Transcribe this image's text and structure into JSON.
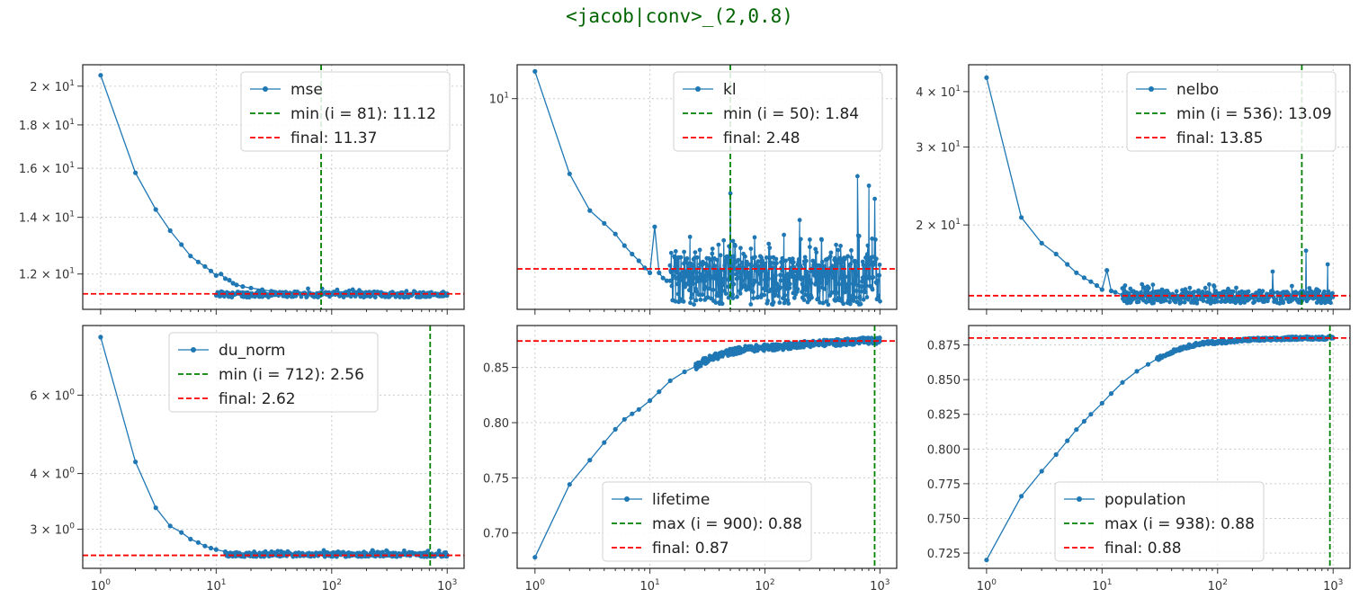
{
  "title": "<jacob|conv>_(2,0.8)",
  "colors": {
    "title": "#006400",
    "series": "#1f77b4",
    "min_line": "#008000",
    "final_line": "#ff0000",
    "grid": "#cccccc"
  },
  "chart_data": [
    {
      "type": "line",
      "series_name": "mse",
      "yscale": "log",
      "xscale": "log",
      "xlim": [
        0.7,
        1400
      ],
      "ylim": [
        10.9,
        21.2
      ],
      "x_ticks": [
        1,
        10,
        100,
        1000
      ],
      "x_tick_labels": [
        "",
        "",
        "",
        ""
      ],
      "y_ticks": [
        12,
        14,
        16,
        18,
        20
      ],
      "y_tick_labels": [
        "1.2 × 10^1",
        "1.4 × 10^1",
        "1.6 × 10^1",
        "1.8 × 10^1",
        "2 × 10^1"
      ],
      "y_major_label_values": [
        12,
        14,
        16,
        18,
        20
      ],
      "legend": [
        "mse",
        "min (i = 81): 11.12",
        "final: 11.37"
      ],
      "legend_loc": "upper right",
      "vline_x": 81,
      "hline_y": 11.37,
      "x": [
        1,
        2,
        3,
        4,
        5,
        6,
        7,
        8,
        9,
        10,
        11,
        12,
        13,
        14,
        15,
        17,
        20,
        25,
        30,
        40,
        50,
        70,
        100,
        200,
        400,
        700,
        1000
      ],
      "y": [
        20.6,
        15.8,
        14.3,
        13.5,
        13.0,
        12.6,
        12.4,
        12.25,
        12.1,
        11.95,
        12.0,
        11.85,
        11.8,
        11.7,
        11.65,
        11.6,
        11.55,
        11.5,
        11.45,
        11.42,
        11.4,
        11.35,
        11.38,
        11.4,
        11.38,
        11.4,
        11.37
      ],
      "noise": {
        "from": 10,
        "to": 1000,
        "center": 11.35,
        "amp": 0.09,
        "count": 280
      }
    },
    {
      "type": "line",
      "series_name": "kl",
      "yscale": "log",
      "xscale": "log",
      "xlim": [
        0.7,
        1400
      ],
      "ylim": [
        1.78,
        13.2
      ],
      "x_ticks": [
        1,
        10,
        100,
        1000
      ],
      "x_tick_labels": [
        "",
        "",
        "",
        ""
      ],
      "y_ticks": [
        10
      ],
      "y_tick_labels": [
        "10^1"
      ],
      "legend": [
        "kl",
        "min (i = 50): 1.84",
        "final: 2.48"
      ],
      "legend_loc": "upper right",
      "vline_x": 50,
      "hline_y": 2.48,
      "x": [
        1,
        2,
        3,
        4,
        5,
        6,
        7,
        8,
        9,
        10,
        11,
        12,
        13,
        14,
        15,
        17,
        20,
        25,
        30,
        40,
        50
      ],
      "y": [
        12.5,
        5.4,
        4.0,
        3.6,
        3.3,
        3.0,
        2.8,
        2.65,
        2.5,
        2.4,
        3.5,
        2.4,
        2.3,
        2.25,
        2.25,
        2.3,
        2.2,
        2.3,
        2.25,
        2.3,
        2.3
      ],
      "noise": {
        "from": 15,
        "to": 1000,
        "center": 2.3,
        "amp": 0.45,
        "count": 520,
        "spikes": [
          [
            50,
            4.6
          ],
          [
            200,
            3.7
          ],
          [
            640,
            5.3
          ],
          [
            800,
            4.9
          ],
          [
            900,
            4.4
          ]
        ]
      }
    },
    {
      "type": "line",
      "series_name": "nelbo",
      "yscale": "log",
      "xscale": "log",
      "xlim": [
        0.7,
        1400
      ],
      "ylim": [
        12.9,
        46.0
      ],
      "x_ticks": [
        1,
        10,
        100,
        1000
      ],
      "x_tick_labels": [
        "",
        "",
        "",
        ""
      ],
      "y_ticks": [
        20,
        30,
        40
      ],
      "y_tick_labels": [
        "2 × 10^1",
        "3 × 10^1",
        "4 × 10^1"
      ],
      "legend": [
        "nelbo",
        "min (i = 536): 13.09",
        "final: 13.85"
      ],
      "legend_loc": "upper right",
      "vline_x": 536,
      "hline_y": 13.85,
      "x": [
        1,
        2,
        3,
        4,
        5,
        6,
        7,
        8,
        9,
        10,
        11,
        12,
        13,
        15,
        17,
        20,
        25,
        30,
        40,
        50
      ],
      "y": [
        43.0,
        20.8,
        18.2,
        17.2,
        16.3,
        15.6,
        15.2,
        14.9,
        14.6,
        14.3,
        15.8,
        14.2,
        14.1,
        13.9,
        13.85,
        13.8,
        13.75,
        13.7,
        13.7,
        13.7
      ],
      "noise": {
        "from": 15,
        "to": 1000,
        "center": 13.75,
        "amp": 0.45,
        "count": 420,
        "spikes": [
          [
            300,
            15.7
          ],
          [
            580,
            17.5
          ],
          [
            900,
            16.3
          ]
        ]
      }
    },
    {
      "type": "line",
      "series_name": "du_norm",
      "yscale": "log",
      "xscale": "log",
      "xlim": [
        0.7,
        1400
      ],
      "ylim": [
        2.45,
        8.6
      ],
      "x_ticks": [
        1,
        10,
        100,
        1000
      ],
      "x_tick_labels": [
        "10^0",
        "10^1",
        "10^2",
        "10^3"
      ],
      "y_ticks": [
        3,
        4,
        6
      ],
      "y_tick_labels": [
        "3 × 10^0",
        "4 × 10^0",
        "6 × 10^0"
      ],
      "legend": [
        "du_norm",
        "min (i = 712): 2.56",
        "final: 2.62"
      ],
      "legend_loc": "upper center",
      "vline_x": 712,
      "hline_y": 2.62,
      "x": [
        1,
        2,
        3,
        4,
        5,
        6,
        7,
        8,
        9,
        10,
        12,
        15,
        20,
        30,
        50,
        100,
        300,
        1000
      ],
      "y": [
        8.1,
        4.25,
        3.35,
        3.05,
        2.95,
        2.85,
        2.8,
        2.75,
        2.72,
        2.7,
        2.67,
        2.66,
        2.64,
        2.63,
        2.63,
        2.62,
        2.62,
        2.62
      ],
      "noise": {
        "from": 12,
        "to": 1000,
        "center": 2.63,
        "amp": 0.03,
        "count": 300
      }
    },
    {
      "type": "line",
      "series_name": "lifetime",
      "yscale": "linear",
      "xscale": "log",
      "xlim": [
        0.7,
        1400
      ],
      "ylim": [
        0.668,
        0.888
      ],
      "x_ticks": [
        1,
        10,
        100,
        1000
      ],
      "x_tick_labels": [
        "10^0",
        "10^1",
        "10^2",
        "10^3"
      ],
      "y_ticks": [
        0.7,
        0.75,
        0.8,
        0.85
      ],
      "y_tick_labels": [
        "0.70",
        "0.75",
        "0.80",
        "0.85"
      ],
      "legend": [
        "lifetime",
        "max (i = 900): 0.88",
        "final: 0.87"
      ],
      "legend_loc": "lower center",
      "vline_x": 900,
      "hline_y": 0.874,
      "x": [
        1,
        2,
        3,
        4,
        5,
        6,
        7,
        8,
        10,
        12,
        15,
        20,
        25,
        30,
        40,
        50,
        70,
        100,
        150,
        200,
        300,
        500,
        700,
        1000
      ],
      "y": [
        0.678,
        0.744,
        0.766,
        0.782,
        0.794,
        0.803,
        0.808,
        0.812,
        0.82,
        0.828,
        0.838,
        0.846,
        0.851,
        0.856,
        0.861,
        0.864,
        0.867,
        0.868,
        0.869,
        0.871,
        0.872,
        0.873,
        0.874,
        0.874
      ],
      "noise": {
        "from": 25,
        "to": 1000,
        "center_curve": true,
        "amp": 0.003,
        "count": 350
      }
    },
    {
      "type": "line",
      "series_name": "population",
      "yscale": "linear",
      "xscale": "log",
      "xlim": [
        0.7,
        1400
      ],
      "ylim": [
        0.714,
        0.889
      ],
      "x_ticks": [
        1,
        10,
        100,
        1000
      ],
      "x_tick_labels": [
        "10^0",
        "10^1",
        "10^2",
        "10^3"
      ],
      "y_ticks": [
        0.725,
        0.75,
        0.775,
        0.8,
        0.825,
        0.85,
        0.875
      ],
      "y_tick_labels": [
        "0.725",
        "0.750",
        "0.775",
        "0.800",
        "0.825",
        "0.850",
        "0.875"
      ],
      "legend": [
        "population",
        "max (i = 938): 0.88",
        "final: 0.88"
      ],
      "legend_loc": "lower center",
      "vline_x": 938,
      "hline_y": 0.88,
      "x": [
        1,
        2,
        3,
        4,
        5,
        6,
        7,
        8,
        10,
        12,
        15,
        20,
        25,
        30,
        40,
        50,
        70,
        100,
        150,
        200,
        300,
        500,
        700,
        1000
      ],
      "y": [
        0.72,
        0.766,
        0.784,
        0.796,
        0.806,
        0.814,
        0.82,
        0.825,
        0.833,
        0.84,
        0.848,
        0.856,
        0.861,
        0.865,
        0.87,
        0.873,
        0.876,
        0.877,
        0.878,
        0.879,
        0.879,
        0.88,
        0.88,
        0.88
      ],
      "noise": {
        "from": 30,
        "to": 1000,
        "center_curve": true,
        "amp": 0.0012,
        "count": 300
      }
    }
  ]
}
